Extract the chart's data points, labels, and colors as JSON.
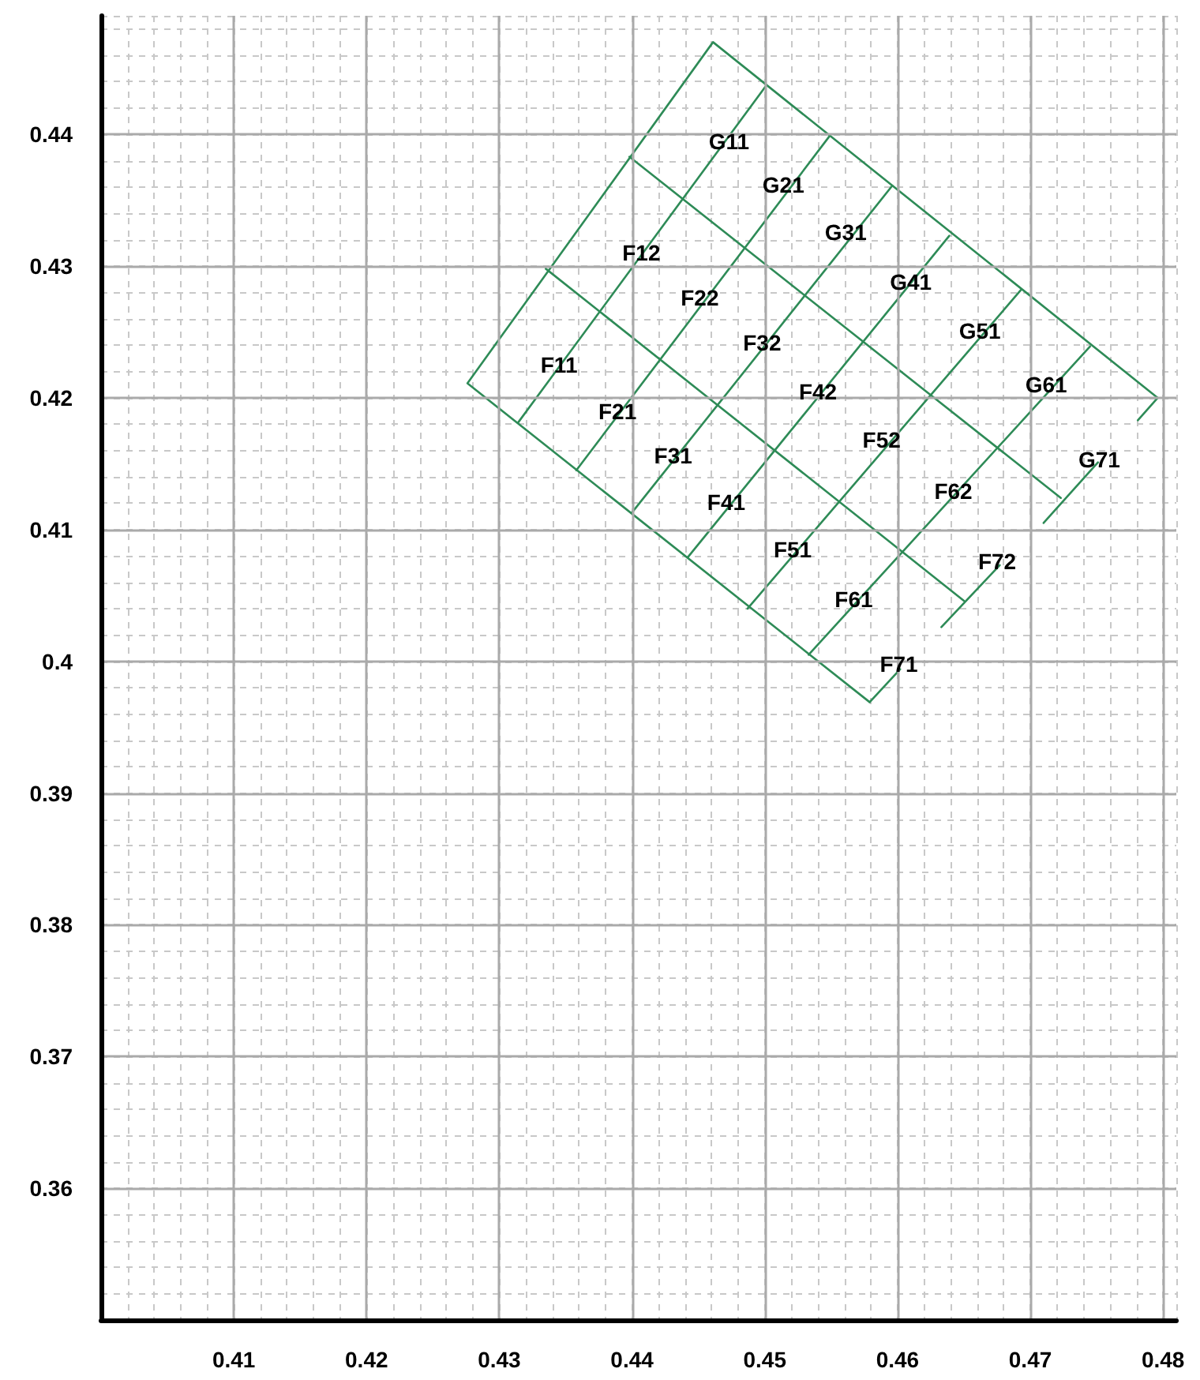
{
  "chart_data": {
    "type": "line",
    "xlim": [
      0.4,
      0.481
    ],
    "ylim": [
      0.35,
      0.449
    ],
    "xticks": [
      0.41,
      0.42,
      0.43,
      0.44,
      0.45,
      0.46,
      0.47,
      0.48
    ],
    "yticks": [
      0.36,
      0.37,
      0.38,
      0.39,
      0.4,
      0.41,
      0.42,
      0.43,
      0.44
    ],
    "grid": true,
    "marker": "none",
    "line_style": "solid",
    "series": [
      {
        "color": "#2e8b57",
        "x": [
          0.4579,
          0.4276,
          0.4461,
          0.4796
        ],
        "values": [
          0.3969,
          0.4211,
          0.447,
          0.42
        ]
      },
      {
        "color": "#2e8b57",
        "x": [
          0.4796,
          0.4781
        ],
        "values": [
          0.42,
          0.4183
        ]
      },
      {
        "color": "#2e8b57",
        "x": [
          0.4579,
          0.4602
        ],
        "values": [
          0.3969,
          0.3994
        ]
      },
      {
        "color": "#2e8b57",
        "x": [
          0.4633,
          0.4677
        ],
        "values": [
          0.4026,
          0.4073
        ]
      },
      {
        "color": "#2e8b57",
        "x": [
          0.471,
          0.4751
        ],
        "values": [
          0.4105,
          0.4151
        ]
      },
      {
        "color": "#2e8b57",
        "x": [
          0.4335,
          0.465
        ],
        "values": [
          0.4298,
          0.4046
        ]
      },
      {
        "color": "#2e8b57",
        "x": [
          0.4398,
          0.4723
        ],
        "values": [
          0.4383,
          0.4124
        ]
      },
      {
        "color": "#2e8b57",
        "x": [
          0.4314,
          0.4501
        ],
        "values": [
          0.4181,
          0.4437
        ]
      },
      {
        "color": "#2e8b57",
        "x": [
          0.4358,
          0.4549
        ],
        "values": [
          0.4145,
          0.4399
        ]
      },
      {
        "color": "#2e8b57",
        "x": [
          0.44,
          0.4596
        ],
        "values": [
          0.4113,
          0.4361
        ]
      },
      {
        "color": "#2e8b57",
        "x": [
          0.4442,
          0.4639
        ],
        "values": [
          0.4079,
          0.4323
        ]
      },
      {
        "color": "#2e8b57",
        "x": [
          0.4487,
          0.4693
        ],
        "values": [
          0.404,
          0.4282
        ]
      },
      {
        "color": "#2e8b57",
        "x": [
          0.4533,
          0.4745
        ],
        "values": [
          0.4005,
          0.4239
        ]
      }
    ],
    "annotations": [
      {
        "text": "G11",
        "x": 0.4473,
        "y": 0.4395
      },
      {
        "text": "G21",
        "x": 0.4514,
        "y": 0.4362
      },
      {
        "text": "G31",
        "x": 0.4561,
        "y": 0.4326
      },
      {
        "text": "G41",
        "x": 0.461,
        "y": 0.4288
      },
      {
        "text": "G51",
        "x": 0.4662,
        "y": 0.4251
      },
      {
        "text": "G61",
        "x": 0.4712,
        "y": 0.421
      },
      {
        "text": "G71",
        "x": 0.4752,
        "y": 0.4153
      },
      {
        "text": "F12",
        "x": 0.4407,
        "y": 0.431
      },
      {
        "text": "F22",
        "x": 0.4451,
        "y": 0.4276
      },
      {
        "text": "F32",
        "x": 0.4498,
        "y": 0.4242
      },
      {
        "text": "F42",
        "x": 0.454,
        "y": 0.4205
      },
      {
        "text": "F52",
        "x": 0.4588,
        "y": 0.4168
      },
      {
        "text": "F62",
        "x": 0.4642,
        "y": 0.4129
      },
      {
        "text": "F72",
        "x": 0.4675,
        "y": 0.4076
      },
      {
        "text": "F11",
        "x": 0.4345,
        "y": 0.4225
      },
      {
        "text": "F21",
        "x": 0.4389,
        "y": 0.419
      },
      {
        "text": "F31",
        "x": 0.4431,
        "y": 0.4156
      },
      {
        "text": "F41",
        "x": 0.4471,
        "y": 0.4121
      },
      {
        "text": "F51",
        "x": 0.4521,
        "y": 0.4085
      },
      {
        "text": "F61",
        "x": 0.4567,
        "y": 0.4047
      },
      {
        "text": "F71",
        "x": 0.4601,
        "y": 0.3998
      }
    ]
  }
}
